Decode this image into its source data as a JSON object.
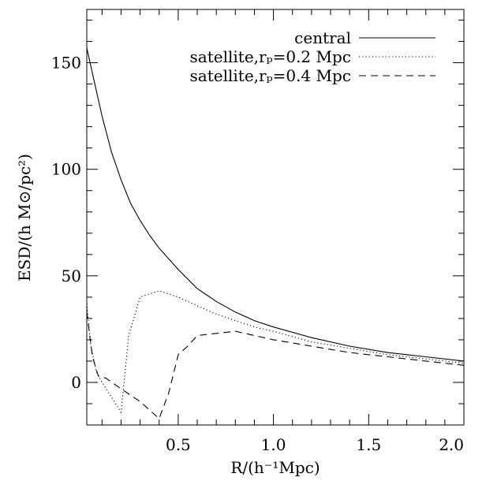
{
  "chart_data": {
    "type": "line",
    "xlabel": "R/(h⁻¹Mpc)",
    "ylabel": "ESD/(h M⊙/pc²)",
    "xlim": [
      0.02,
      2.0
    ],
    "ylim": [
      -20,
      175
    ],
    "xticks": [
      {
        "value": 0.5,
        "label": "0.5"
      },
      {
        "value": 1.0,
        "label": "1.0"
      },
      {
        "value": 1.5,
        "label": "1.5"
      },
      {
        "value": 2.0,
        "label": "2.0"
      }
    ],
    "xminor": [
      0.1,
      0.2,
      0.3,
      0.4,
      0.6,
      0.7,
      0.8,
      0.9,
      1.1,
      1.2,
      1.3,
      1.4,
      1.6,
      1.7,
      1.8,
      1.9
    ],
    "yticks": [
      {
        "value": 0,
        "label": "0"
      },
      {
        "value": 50,
        "label": "50"
      },
      {
        "value": 100,
        "label": "100"
      },
      {
        "value": 150,
        "label": "150"
      }
    ],
    "yminor": [
      -10,
      10,
      20,
      30,
      40,
      60,
      70,
      80,
      90,
      110,
      120,
      130,
      140,
      160,
      170
    ],
    "grid": false,
    "legend_position": "top-right",
    "series": [
      {
        "name": "central",
        "dash": "solid",
        "points": [
          [
            0.02,
            157
          ],
          [
            0.05,
            145
          ],
          [
            0.1,
            125
          ],
          [
            0.15,
            108
          ],
          [
            0.2,
            95
          ],
          [
            0.25,
            84
          ],
          [
            0.3,
            76
          ],
          [
            0.35,
            69
          ],
          [
            0.4,
            63
          ],
          [
            0.5,
            53
          ],
          [
            0.6,
            44
          ],
          [
            0.7,
            38
          ],
          [
            0.8,
            33
          ],
          [
            0.9,
            29
          ],
          [
            1.0,
            26
          ],
          [
            1.2,
            21
          ],
          [
            1.4,
            17
          ],
          [
            1.6,
            14
          ],
          [
            1.8,
            12
          ],
          [
            2.0,
            10
          ]
        ]
      },
      {
        "name": "satellite,rₚ=0.2 Mpc",
        "dash": "dotted",
        "points": [
          [
            0.02,
            37
          ],
          [
            0.04,
            18
          ],
          [
            0.07,
            5
          ],
          [
            0.1,
            0
          ],
          [
            0.15,
            -7
          ],
          [
            0.2,
            -14
          ],
          [
            0.24,
            22
          ],
          [
            0.3,
            40
          ],
          [
            0.4,
            43
          ],
          [
            0.5,
            40
          ],
          [
            0.6,
            36
          ],
          [
            0.7,
            32
          ],
          [
            0.8,
            29
          ],
          [
            0.9,
            26
          ],
          [
            1.0,
            24
          ],
          [
            1.2,
            19
          ],
          [
            1.4,
            16
          ],
          [
            1.6,
            13
          ],
          [
            1.8,
            11
          ],
          [
            2.0,
            9
          ]
        ]
      },
      {
        "name": "satellite,rₚ=0.4 Mpc",
        "dash": "dashed",
        "points": [
          [
            0.02,
            33
          ],
          [
            0.05,
            12
          ],
          [
            0.08,
            3
          ],
          [
            0.12,
            2
          ],
          [
            0.2,
            -3
          ],
          [
            0.3,
            -9
          ],
          [
            0.35,
            -13
          ],
          [
            0.4,
            -17
          ],
          [
            0.45,
            -5
          ],
          [
            0.5,
            13
          ],
          [
            0.55,
            17
          ],
          [
            0.6,
            22
          ],
          [
            0.7,
            23
          ],
          [
            0.8,
            24
          ],
          [
            0.9,
            22
          ],
          [
            1.0,
            20
          ],
          [
            1.2,
            17
          ],
          [
            1.4,
            14
          ],
          [
            1.6,
            12
          ],
          [
            1.8,
            10
          ],
          [
            2.0,
            8
          ]
        ]
      }
    ]
  }
}
